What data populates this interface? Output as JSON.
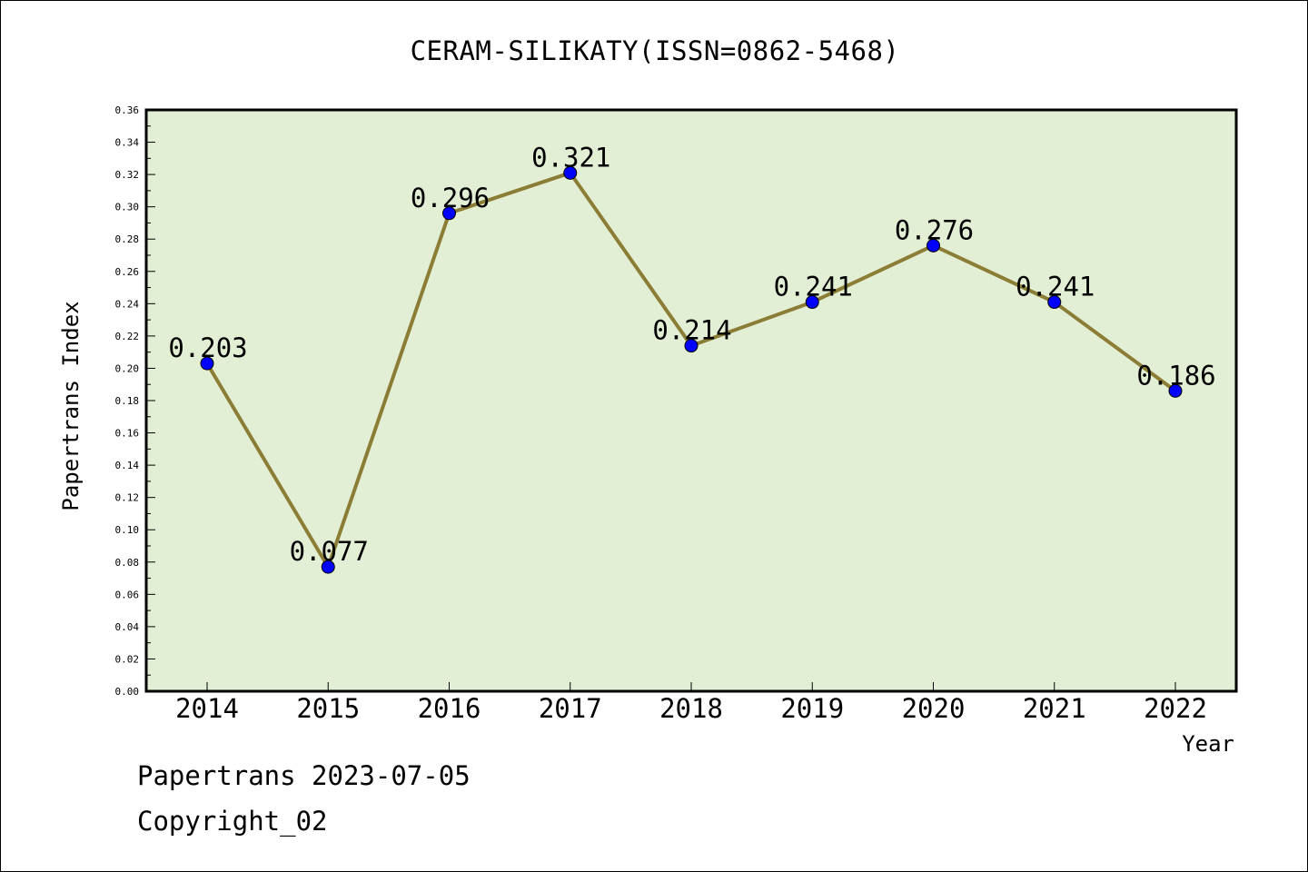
{
  "footer": {
    "date_line": "Papertrans 2023-07-05",
    "copyright": "Copyright_02"
  },
  "chart_data": {
    "type": "line",
    "title": "CERAM-SILIKATY(ISSN=0862-5468)",
    "xlabel": "Year",
    "ylabel": "Papertrans Index",
    "categories": [
      "2014",
      "2015",
      "2016",
      "2017",
      "2018",
      "2019",
      "2020",
      "2021",
      "2022"
    ],
    "values": [
      0.203,
      0.077,
      0.296,
      0.321,
      0.214,
      0.241,
      0.276,
      0.241,
      0.186
    ],
    "data_labels": [
      "0.203",
      "0.077",
      "0.296",
      "0.321",
      "0.214",
      "0.241",
      "0.276",
      "0.241",
      "0.186"
    ],
    "ylim": [
      0,
      0.36
    ],
    "yticks": [
      "0.00",
      "0.02",
      "0.04",
      "0.06",
      "0.08",
      "0.10",
      "0.12",
      "0.14",
      "0.16",
      "0.18",
      "0.20",
      "0.22",
      "0.24",
      "0.26",
      "0.28",
      "0.30",
      "0.32",
      "0.34",
      "0.36"
    ],
    "grid": false,
    "colors": {
      "plot_background": "#e2efd5",
      "line": "#8b7d35",
      "marker": "#0000ff"
    }
  }
}
